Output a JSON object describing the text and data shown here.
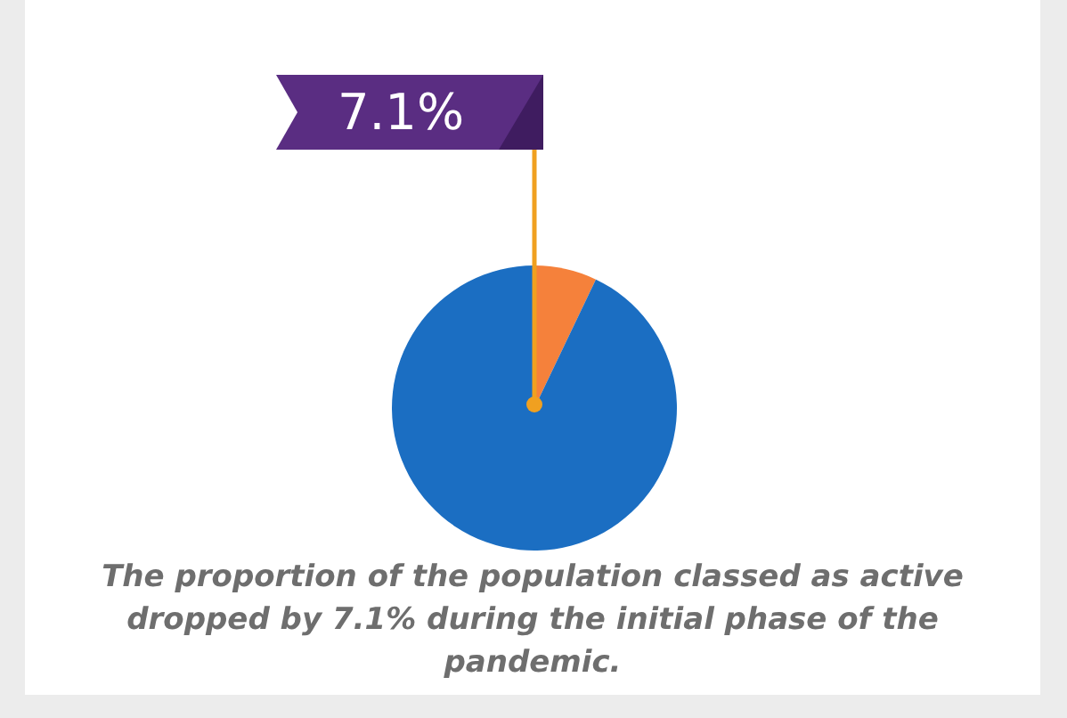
{
  "chart_data": {
    "type": "pie",
    "categories": [
      null,
      null
    ],
    "values": [
      7.1,
      92.9
    ],
    "colors": [
      "#f5813b",
      "#1b6ec2"
    ],
    "value_labels": [
      "7.1%",
      null
    ],
    "annotations": [
      "The proportion of the population classed as active dropped by 7.1% during the initial phase of the pandemic."
    ]
  }
}
